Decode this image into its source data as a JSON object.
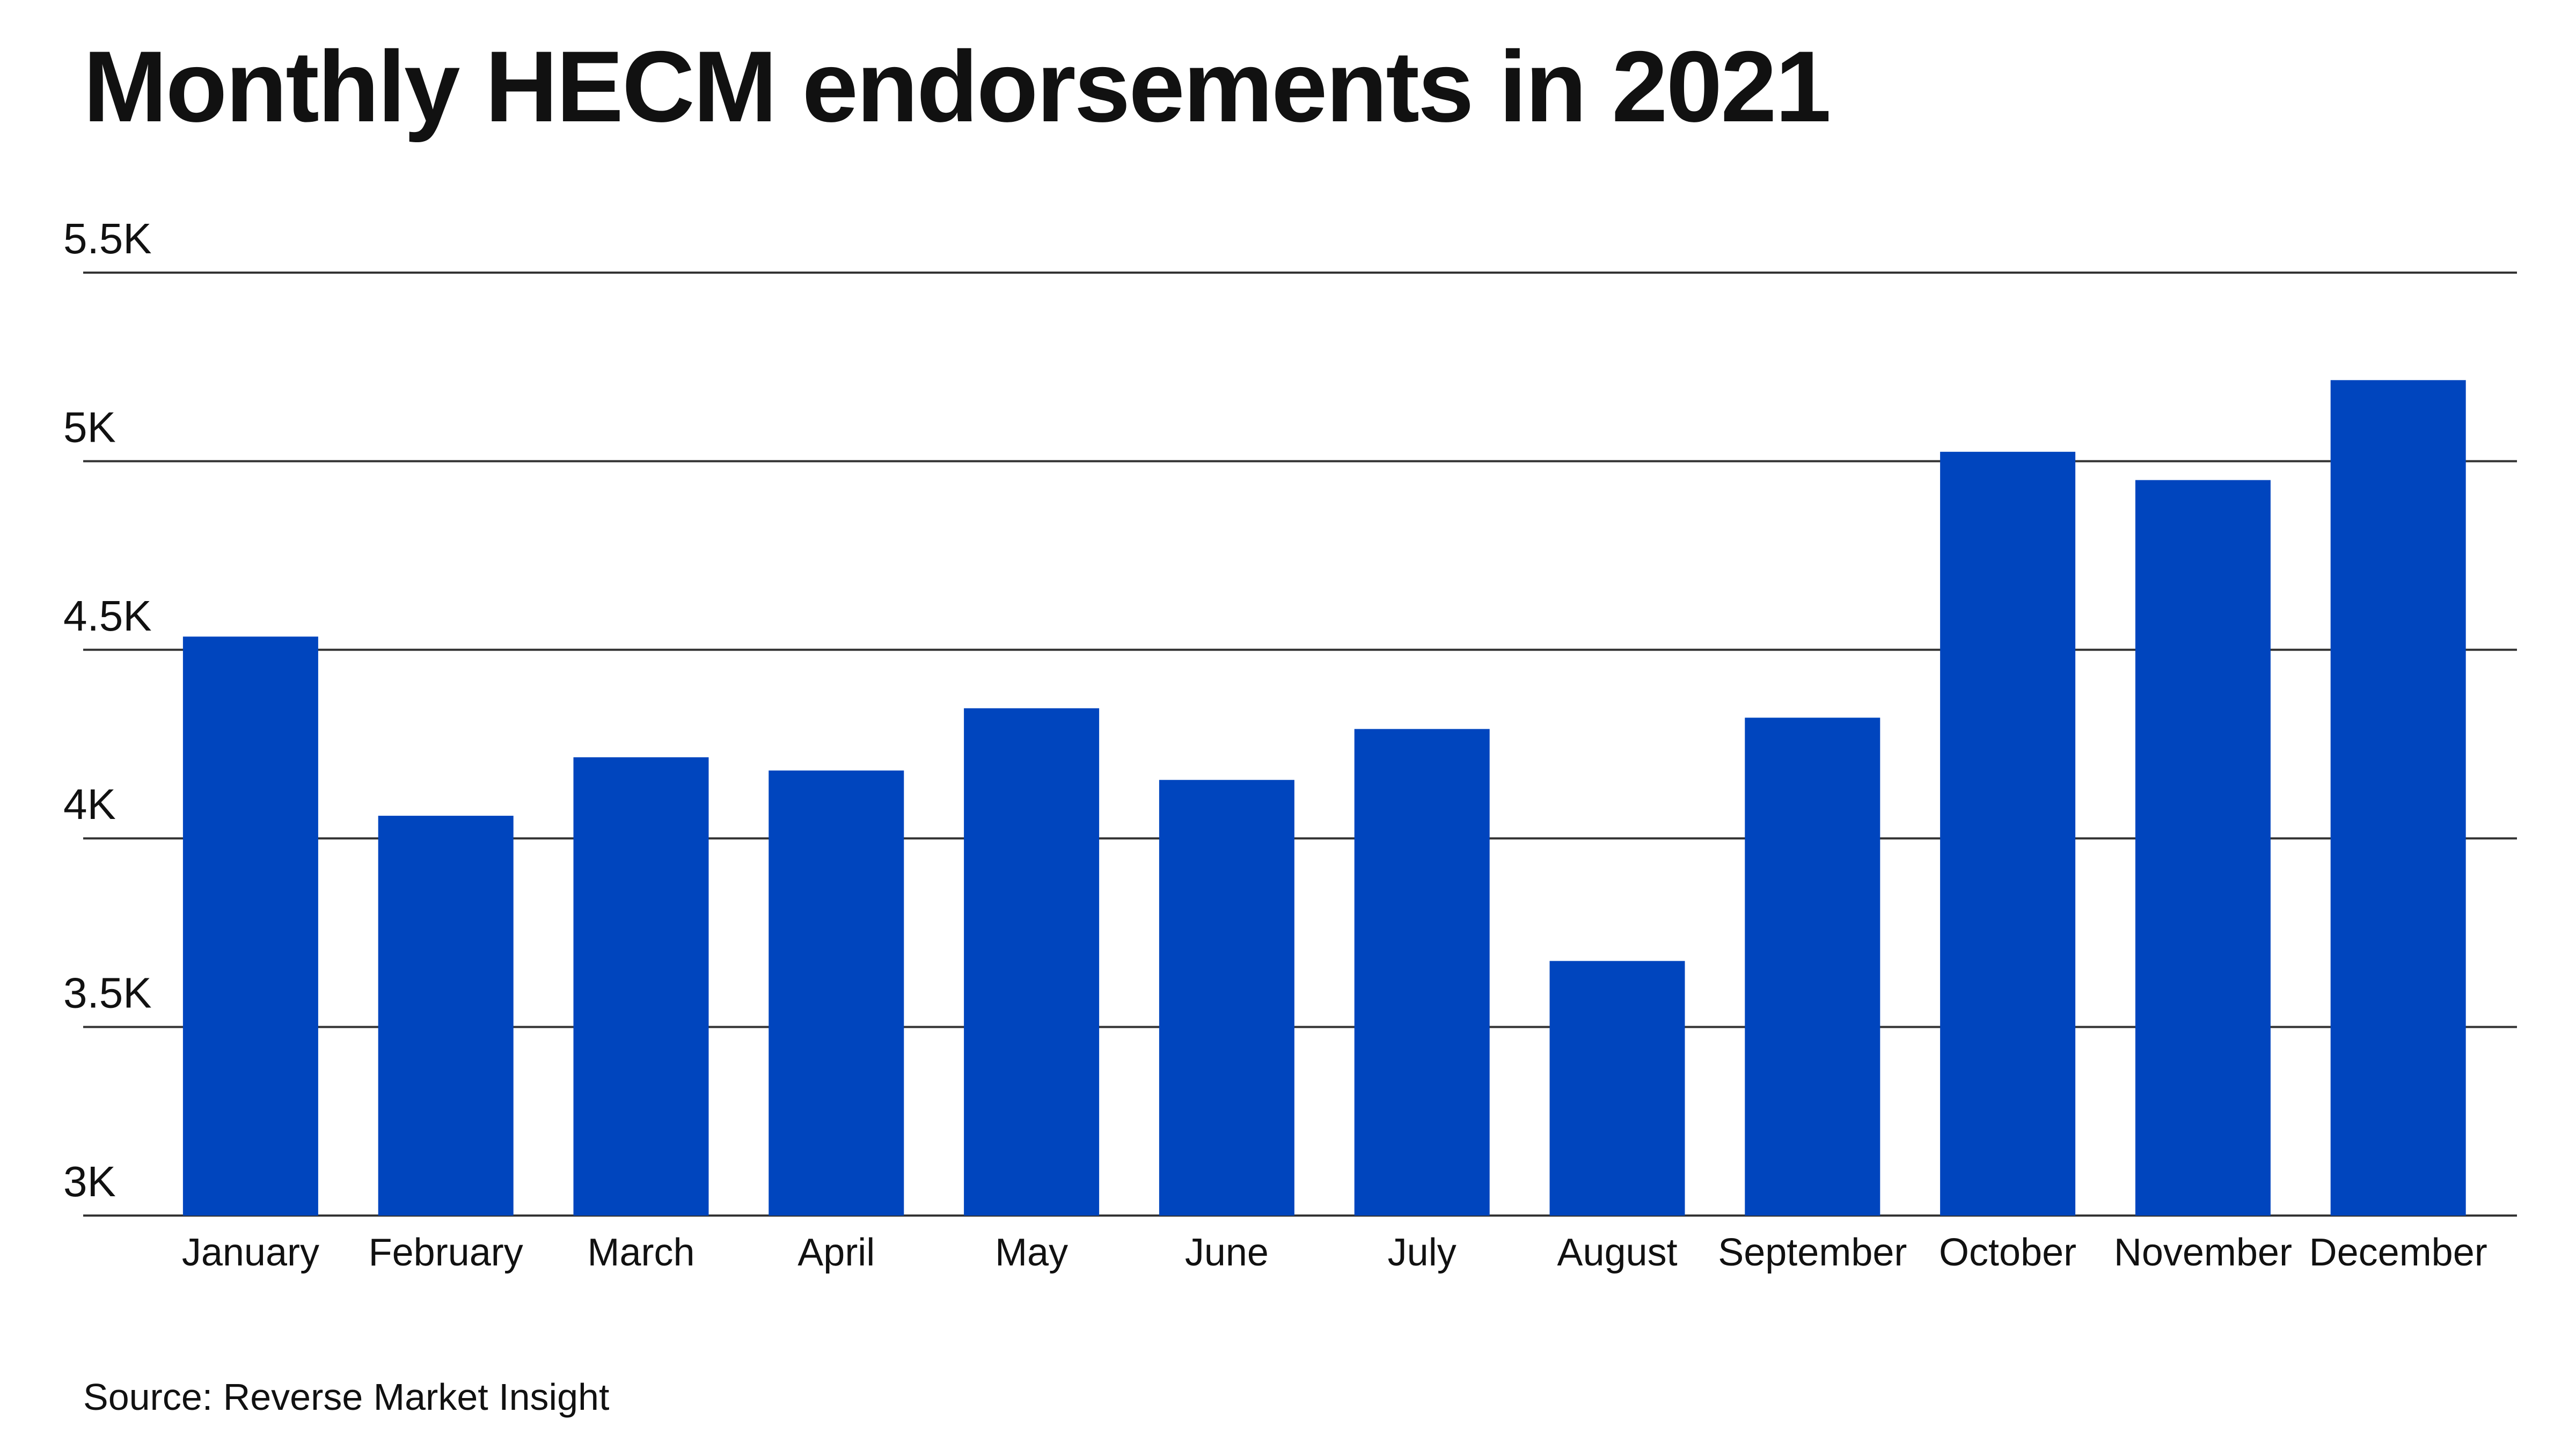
{
  "title": "Monthly HECM endorsements in 2021",
  "source": "Source: Reverse Market Insight",
  "colors": {
    "bar": "#0045BE",
    "grid": "#333333",
    "text": "#111111",
    "background": "#ffffff"
  },
  "chart_data": {
    "type": "bar",
    "title": "Monthly HECM endorsements in 2021",
    "xlabel": "",
    "ylabel": "",
    "categories": [
      "January",
      "February",
      "March",
      "April",
      "May",
      "June",
      "July",
      "August",
      "September",
      "October",
      "November",
      "December"
    ],
    "values": [
      4535,
      4060,
      4215,
      4180,
      4345,
      4155,
      4290,
      3675,
      4320,
      5025,
      4950,
      5215
    ],
    "ylim": [
      3000,
      5500
    ],
    "yticks": [
      3000,
      3500,
      4000,
      4500,
      5000,
      5500
    ],
    "ytick_labels": [
      "3K",
      "3.5K",
      "4K",
      "4.5K",
      "5K",
      "5.5K"
    ],
    "grid": true,
    "legend": "none"
  }
}
